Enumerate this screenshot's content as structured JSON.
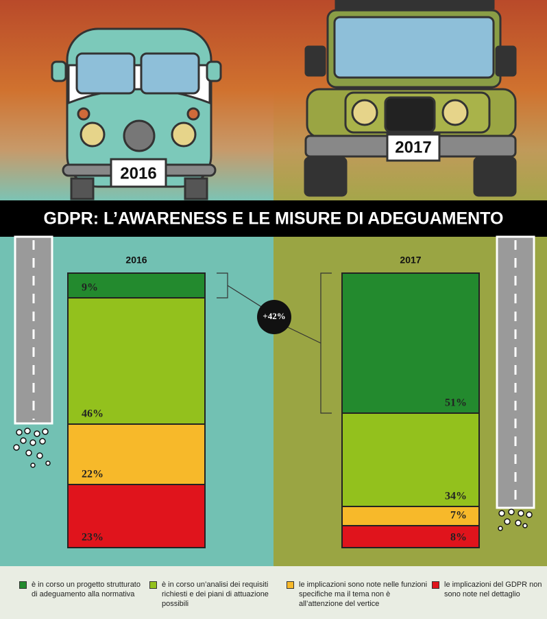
{
  "chart_data": {
    "type": "stacked_bar",
    "title": "GDPR: L’AWARENESS E LE MISURE DI ADEGUAMENTO",
    "categories": [
      "2016",
      "2017"
    ],
    "annotation": "+42%",
    "series": [
      {
        "name": "è in corso un progetto strutturato di adeguamento alla normativa",
        "color": "#238a2e",
        "values": [
          9,
          51
        ],
        "value_labels": [
          "9%",
          "51%"
        ]
      },
      {
        "name": "è in corso un’analisi dei requisiti richiesti e dei piani di attuazione possibili",
        "color": "#93c11d",
        "values": [
          46,
          34
        ],
        "value_labels": [
          "46%",
          "34%"
        ]
      },
      {
        "name": "le implicazioni sono note nelle funzioni specifiche ma il tema non è all’attenzione del vertice",
        "color": "#f7b92a",
        "values": [
          22,
          7
        ],
        "value_labels": [
          "22%",
          "7%"
        ]
      },
      {
        "name": "le implicazioni del GDPR non sono note nel dettaglio",
        "color": "#e0141c",
        "values": [
          23,
          8
        ],
        "value_labels": [
          "23%",
          "8%"
        ]
      }
    ]
  }
}
